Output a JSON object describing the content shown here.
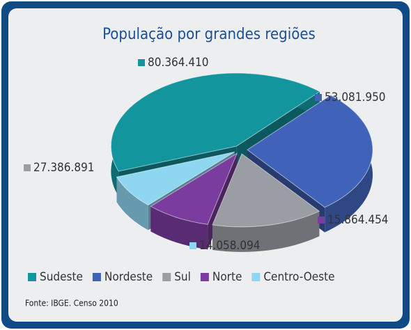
{
  "chart_data": {
    "type": "pie",
    "title": "População por grandes regiões",
    "categories": [
      "Sudeste",
      "Nordeste",
      "Sul",
      "Norte",
      "Centro-Oeste"
    ],
    "values": [
      80364410,
      53081950,
      27386891,
      15864454,
      14058094
    ],
    "value_labels": [
      "80.364.410",
      "53.081.950",
      "27.386.891",
      "15.864.454",
      "14.058.094"
    ],
    "colors": [
      "#13959e",
      "#4162b9",
      "#9b9da4",
      "#7b3c9f",
      "#8fd6f1"
    ],
    "source": "Fonte: IBGE. Censo 2010"
  }
}
